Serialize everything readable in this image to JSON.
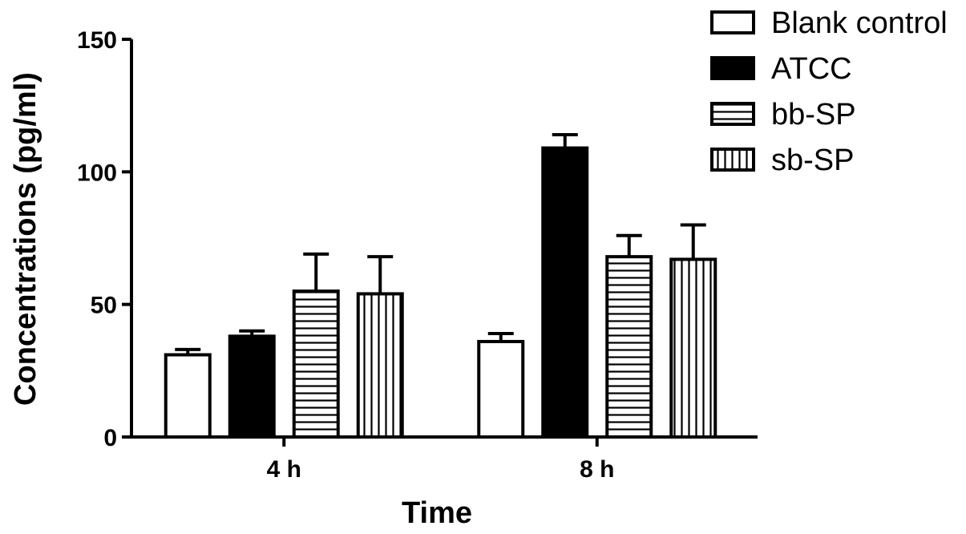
{
  "chart_data": {
    "type": "bar",
    "title": "",
    "xlabel": "Time",
    "ylabel": "Concentrations (pg/ml)",
    "categories": [
      "4 h",
      "8 h"
    ],
    "ylim": [
      0,
      150
    ],
    "yticks": [
      0,
      50,
      100,
      150
    ],
    "grid": false,
    "legend_position": "top-right",
    "series": [
      {
        "name": "Blank control",
        "pattern": "none",
        "values": [
          31,
          36
        ],
        "errors": [
          2,
          3
        ]
      },
      {
        "name": "ATCC",
        "pattern": "solid",
        "values": [
          38,
          109
        ],
        "errors": [
          2,
          5
        ]
      },
      {
        "name": "bb-SP",
        "pattern": "horizontal",
        "values": [
          55,
          68
        ],
        "errors": [
          14,
          8
        ]
      },
      {
        "name": "sb-SP",
        "pattern": "vertical",
        "values": [
          54,
          67
        ],
        "errors": [
          14,
          13
        ]
      }
    ]
  }
}
